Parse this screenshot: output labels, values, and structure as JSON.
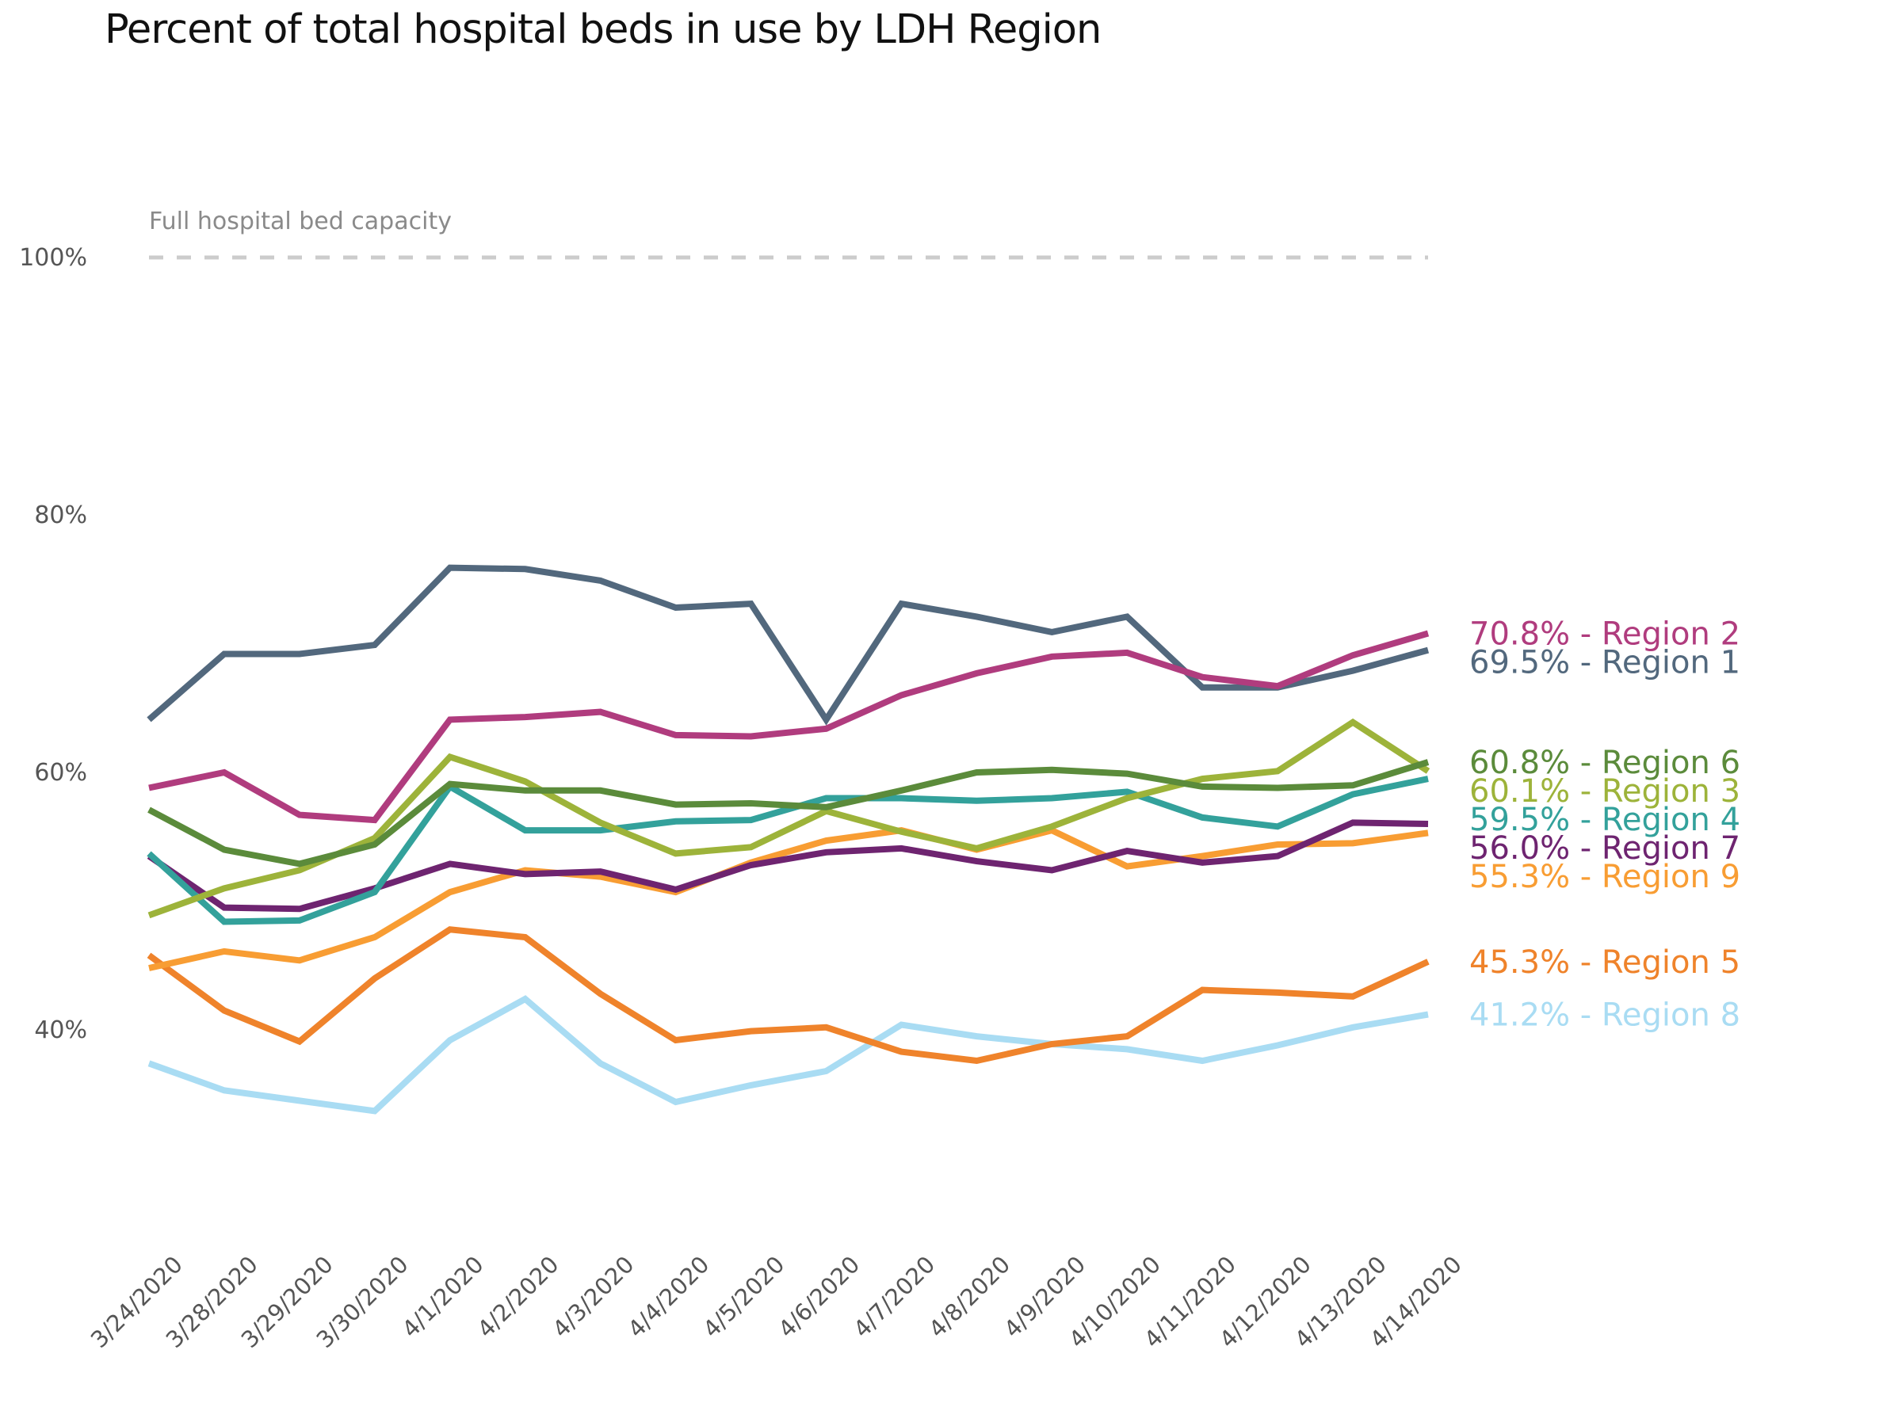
{
  "chart_data": {
    "type": "line",
    "title": "Percent of total hospital beds in use by LDH Region",
    "xlabel": "",
    "ylabel": "",
    "ylim": [
      25,
      100
    ],
    "y_ticks": [
      {
        "value": 100,
        "label": "100%"
      },
      {
        "value": 80,
        "label": "80%"
      },
      {
        "value": 60,
        "label": "60%"
      },
      {
        "value": 40,
        "label": "40%"
      }
    ],
    "grid": false,
    "legend": "direct-labels-right",
    "reference_line": {
      "value": 100,
      "label": "Full hospital bed capacity",
      "style": "dashed",
      "color": "#cccccc"
    },
    "categories": [
      "3/24/2020",
      "3/28/2020",
      "3/29/2020",
      "3/30/2020",
      "4/1/2020",
      "4/2/2020",
      "4/3/2020",
      "4/4/2020",
      "4/5/2020",
      "4/6/2020",
      "4/7/2020",
      "4/8/2020",
      "4/9/2020",
      "4/10/2020",
      "4/11/2020",
      "4/12/2020",
      "4/13/2020",
      "4/14/2020"
    ],
    "series": [
      {
        "name": "Region 1",
        "end_label": "69.5% - Region 1",
        "color": "#52687d",
        "values": [
          64.1,
          69.2,
          69.2,
          69.9,
          75.9,
          75.8,
          74.9,
          72.8,
          73.1,
          64.1,
          73.1,
          72.1,
          70.9,
          72.1,
          66.6,
          66.6,
          67.9,
          69.5
        ]
      },
      {
        "name": "Region 2",
        "end_label": "70.8% - Region 2",
        "color": "#b03c7e",
        "values": [
          58.8,
          60.0,
          56.7,
          56.3,
          64.1,
          64.3,
          64.7,
          62.9,
          62.8,
          63.4,
          66.0,
          67.7,
          69.0,
          69.3,
          67.4,
          66.7,
          69.1,
          70.8
        ]
      },
      {
        "name": "Region 3",
        "end_label": "60.1% - Region 3",
        "color": "#9db33a",
        "values": [
          48.9,
          51.0,
          52.4,
          54.9,
          61.2,
          59.3,
          56.1,
          53.7,
          54.2,
          57.0,
          55.4,
          54.1,
          55.8,
          58.0,
          59.5,
          60.1,
          63.9,
          60.1
        ]
      },
      {
        "name": "Region 4",
        "end_label": "59.5% - Region 4",
        "color": "#33a19b",
        "values": [
          53.7,
          48.4,
          48.5,
          50.7,
          58.9,
          55.5,
          55.5,
          56.2,
          56.3,
          58.0,
          58.0,
          57.8,
          58.0,
          58.5,
          56.5,
          55.8,
          58.3,
          59.5
        ]
      },
      {
        "name": "Region 5",
        "end_label": "45.3% - Region 5",
        "color": "#ef832b",
        "values": [
          45.8,
          41.5,
          39.1,
          44.0,
          47.8,
          47.2,
          42.8,
          39.2,
          39.9,
          40.2,
          38.3,
          37.6,
          38.9,
          39.5,
          43.1,
          42.9,
          42.6,
          45.3
        ]
      },
      {
        "name": "Region 6",
        "end_label": "60.8% - Region 6",
        "color": "#5b8b3b",
        "values": [
          57.1,
          54.0,
          52.9,
          54.4,
          59.1,
          58.6,
          58.6,
          57.5,
          57.6,
          57.3,
          58.6,
          60.0,
          60.2,
          59.9,
          58.9,
          58.8,
          59.0,
          60.8
        ]
      },
      {
        "name": "Region 7",
        "end_label": "56.0% - Region 7",
        "color": "#6e2470",
        "values": [
          53.5,
          49.5,
          49.4,
          51.0,
          52.9,
          52.1,
          52.3,
          50.9,
          52.8,
          53.8,
          54.1,
          53.1,
          52.4,
          53.9,
          53.0,
          53.5,
          56.1,
          56.0
        ]
      },
      {
        "name": "Region 8",
        "end_label": "41.2% - Region 8",
        "color": "#a9dcf3",
        "values": [
          37.4,
          35.3,
          34.5,
          33.7,
          39.2,
          42.4,
          37.4,
          34.4,
          35.7,
          36.8,
          40.4,
          39.5,
          38.9,
          38.5,
          37.6,
          38.8,
          40.2,
          41.2
        ]
      },
      {
        "name": "Region 9",
        "end_label": "55.3% - Region 9",
        "color": "#f89d33",
        "values": [
          44.8,
          46.1,
          45.4,
          47.2,
          50.7,
          52.4,
          51.9,
          50.7,
          53.0,
          54.7,
          55.5,
          54.0,
          55.5,
          52.7,
          53.5,
          54.4,
          54.5,
          55.3
        ]
      }
    ],
    "label_order": [
      "Region 2",
      "Region 1",
      "Region 6",
      "Region 3",
      "Region 4",
      "Region 7",
      "Region 9",
      "Region 5",
      "Region 8"
    ]
  }
}
